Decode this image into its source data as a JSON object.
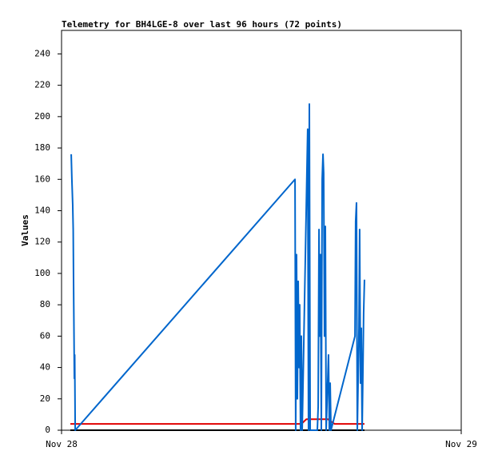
{
  "chart_data": {
    "type": "line",
    "title": "Telemetry for BH4LGE-8 over last 96 hours (72 points)",
    "y_label": "Values",
    "xlim": [
      0,
      24
    ],
    "xticks": [
      {
        "value": 0,
        "label": "Nov 28"
      },
      {
        "value": 24,
        "label": "Nov 29"
      }
    ],
    "ylim": [
      0,
      255
    ],
    "yticks": [
      0,
      20,
      40,
      60,
      80,
      100,
      120,
      140,
      160,
      180,
      200,
      220,
      240
    ],
    "grid": false,
    "series": [
      {
        "color": "#000000",
        "x": [
          0.53,
          18.19
        ],
        "values": [
          0,
          0
        ]
      },
      {
        "color": "#e00000",
        "x": [
          0.53,
          14.4,
          14.7,
          16.0,
          16.4,
          18.19
        ],
        "values": [
          4,
          4,
          7,
          7,
          4,
          4
        ]
      },
      {
        "color": "#0066cc",
        "x": [
          0.58,
          0.62,
          0.67,
          0.7,
          0.72,
          0.77,
          0.79,
          0.82,
          14.02,
          14.06,
          14.11,
          14.16,
          14.21,
          14.26,
          14.3,
          14.35,
          14.4,
          14.45,
          14.78,
          14.83,
          14.88,
          14.93,
          15.36,
          15.41,
          15.46,
          15.5,
          15.55,
          15.6,
          15.65,
          15.7,
          15.74,
          15.79,
          15.84,
          15.89,
          16.03,
          16.08,
          16.13,
          16.18,
          17.62,
          17.66,
          17.71,
          17.76,
          17.86,
          17.9,
          17.95,
          18.0,
          18.05,
          18.1,
          18.14,
          18.19
        ],
        "values": [
          176,
          160,
          144,
          128,
          96,
          33,
          48,
          0,
          160,
          0,
          112,
          20,
          95,
          40,
          80,
          0,
          60,
          0,
          192,
          0,
          208,
          0,
          0,
          15,
          128,
          60,
          112,
          0,
          160,
          176,
          164,
          60,
          130,
          0,
          48,
          0,
          30,
          0,
          60,
          133,
          145,
          0,
          65,
          128,
          30,
          65,
          0,
          40,
          75,
          96
        ]
      }
    ]
  }
}
